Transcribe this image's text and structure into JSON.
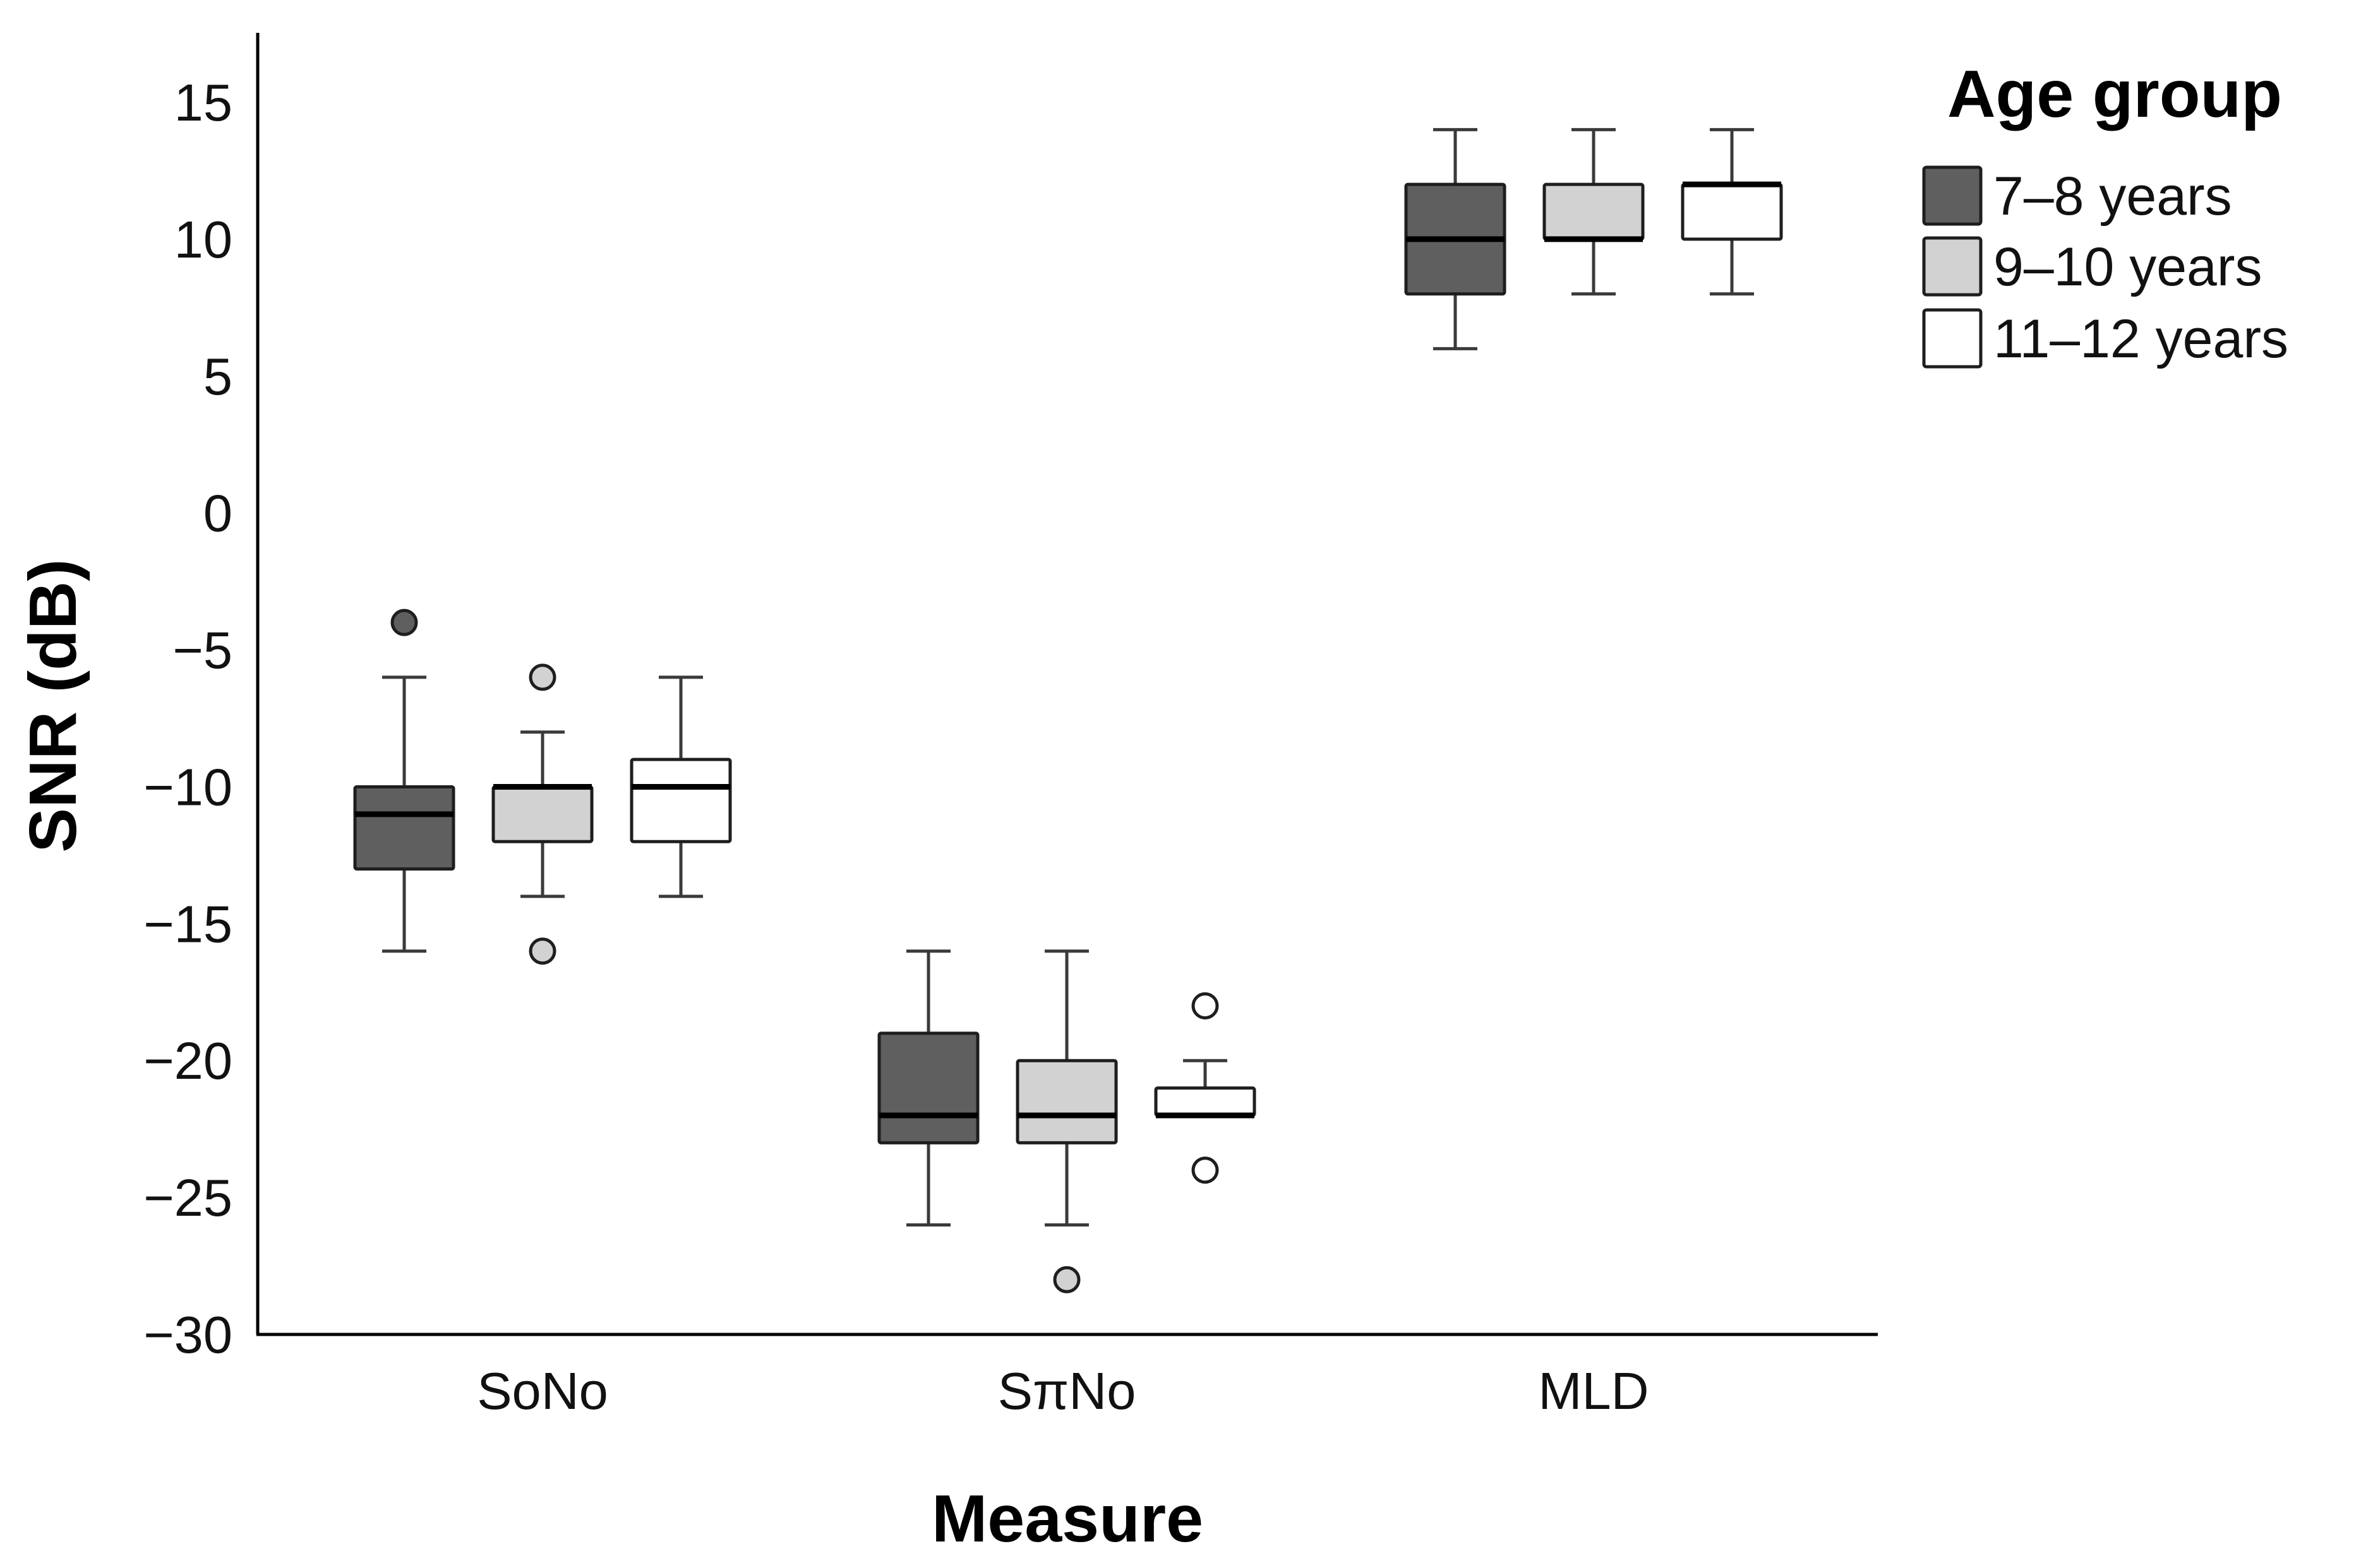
{
  "chart_data": {
    "type": "boxplot",
    "title": "",
    "xlabel": "Measure",
    "ylabel": "SNR (dB)",
    "ylim": [
      -30,
      17
    ],
    "yticks": [
      15,
      10,
      5,
      0,
      -5,
      -10,
      -15,
      -20,
      -25,
      -30
    ],
    "ytick_labels": [
      "15",
      "10",
      "5",
      "0",
      "−5",
      "−10",
      "−15",
      "−20",
      "−25",
      "−30"
    ],
    "categories": [
      "SoNo",
      "SπNo",
      "MLD"
    ],
    "grid": false,
    "legend": {
      "title": "Age group",
      "position": "top-right",
      "entries": [
        "7–8 years",
        "9–10 years",
        "11–12 years"
      ]
    },
    "series": [
      {
        "name": "7–8 years",
        "color": "#5f5f5f",
        "boxes": [
          {
            "category": "SoNo",
            "whisker_low": -16,
            "q1": -13,
            "median": -11,
            "q3": -10,
            "whisker_high": -6,
            "outliers": [
              -4
            ]
          },
          {
            "category": "SπNo",
            "whisker_low": -26,
            "q1": -23,
            "median": -22,
            "q3": -19,
            "whisker_high": -16,
            "outliers": []
          },
          {
            "category": "MLD",
            "whisker_low": 6,
            "q1": 8,
            "median": 10,
            "q3": 12,
            "whisker_high": 14,
            "outliers": []
          }
        ]
      },
      {
        "name": "9–10 years",
        "color": "#d2d2d2",
        "boxes": [
          {
            "category": "SoNo",
            "whisker_low": -14,
            "q1": -12,
            "median": -10,
            "q3": -10,
            "whisker_high": -8,
            "outliers": [
              -6,
              -16
            ]
          },
          {
            "category": "SπNo",
            "whisker_low": -26,
            "q1": -23,
            "median": -22,
            "q3": -20,
            "whisker_high": -16,
            "outliers": [
              -28
            ]
          },
          {
            "category": "MLD",
            "whisker_low": 8,
            "q1": 10,
            "median": 10,
            "q3": 12,
            "whisker_high": 14,
            "outliers": []
          }
        ]
      },
      {
        "name": "11–12 years",
        "color": "#ffffff",
        "boxes": [
          {
            "category": "SoNo",
            "whisker_low": -14,
            "q1": -12,
            "median": -10,
            "q3": -9,
            "whisker_high": -6,
            "outliers": []
          },
          {
            "category": "SπNo",
            "whisker_low": -22,
            "q1": -22,
            "median": -22,
            "q3": -21,
            "whisker_high": -20,
            "outliers": [
              -18,
              -24
            ]
          },
          {
            "category": "MLD",
            "whisker_low": 8,
            "q1": 10,
            "median": 12,
            "q3": 12,
            "whisker_high": 14,
            "outliers": []
          }
        ]
      }
    ]
  }
}
